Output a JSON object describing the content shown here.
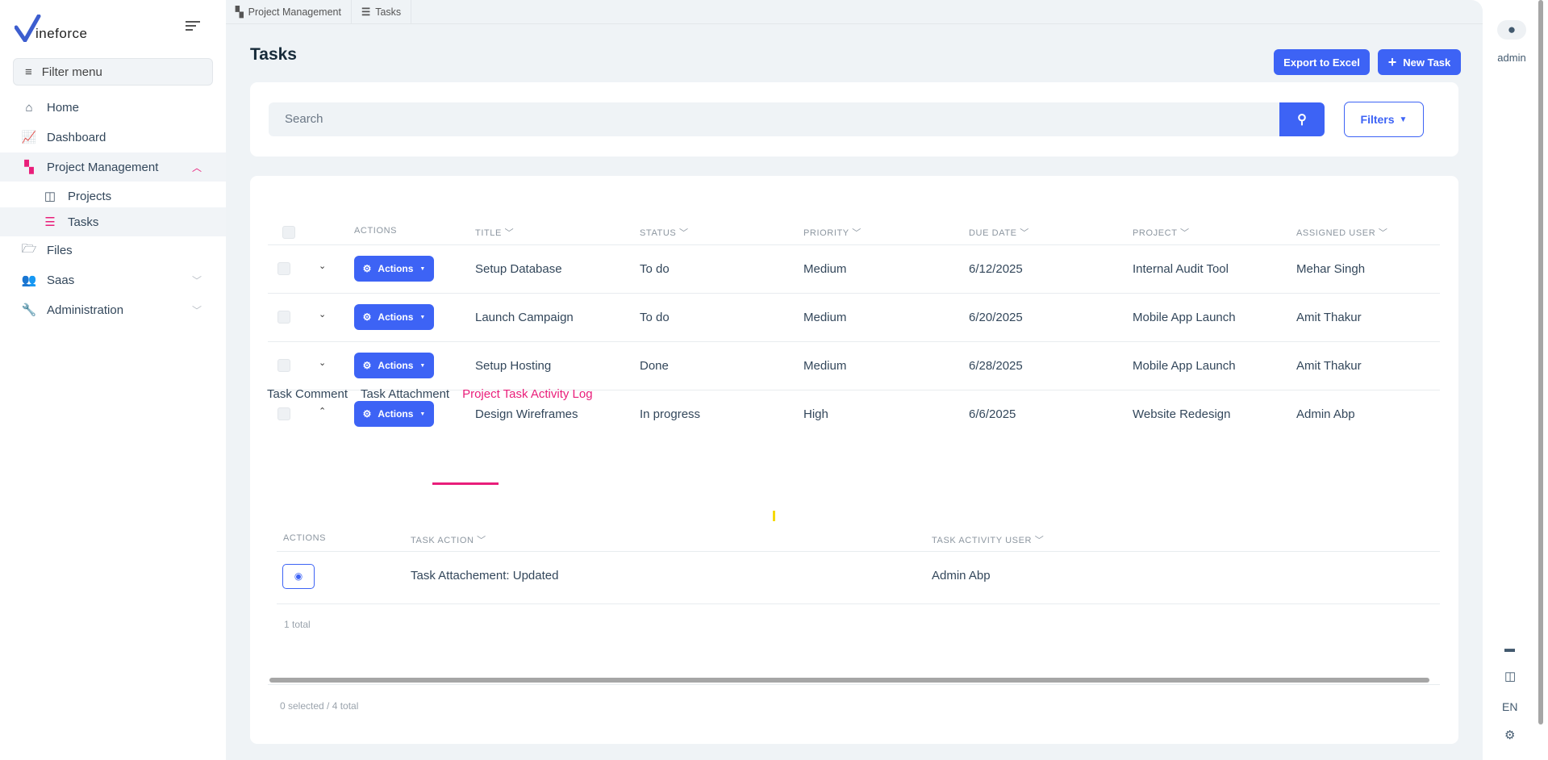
{
  "brand": {
    "logo_text": "ineforce",
    "logo_letter": "V"
  },
  "sidebar": {
    "filter_placeholder": "Filter menu",
    "items": [
      {
        "label": "Home",
        "icon": "home-icon"
      },
      {
        "label": "Dashboard",
        "icon": "chart-icon"
      },
      {
        "label": "Project Management",
        "icon": "sitemap-icon",
        "expanded": true
      },
      {
        "label": "Projects",
        "icon": "columns-icon"
      },
      {
        "label": "Tasks",
        "icon": "tasks-icon",
        "active": true
      },
      {
        "label": "Files",
        "icon": "folder-icon"
      },
      {
        "label": "Saas",
        "icon": "users-icon"
      },
      {
        "label": "Administration",
        "icon": "wrench-icon"
      }
    ]
  },
  "breadcrumb": [
    "Project Management",
    "Tasks"
  ],
  "page": {
    "title": "Tasks",
    "export_label": "Export to Excel",
    "new_label": "New Task"
  },
  "search": {
    "placeholder": "Search",
    "filters_label": "Filters"
  },
  "table": {
    "headers": [
      "ACTIONS",
      "TITLE",
      "STATUS",
      "PRIORITY",
      "DUE DATE",
      "PROJECT",
      "ASSIGNED USER"
    ],
    "action_label": "Actions",
    "rows": [
      [
        "Setup Database",
        "To do",
        "Medium",
        "6/12/2025",
        "Internal Audit Tool",
        "Mehar Singh"
      ],
      [
        "Launch Campaign",
        "To do",
        "Medium",
        "6/20/2025",
        "Mobile App Launch",
        "Amit Thakur"
      ],
      [
        "Setup Hosting",
        "Done",
        "Medium",
        "6/28/2025",
        "Mobile App Launch",
        "Amit Thakur"
      ],
      [
        "Design Wireframes",
        "In progress",
        "High",
        "6/6/2025",
        "Website Redesign",
        "Admin Abp"
      ]
    ],
    "footer": "0 selected / 4 total"
  },
  "detail": {
    "tabs": [
      "Task Comment",
      "Task Attachment",
      "Project Task Activity Log"
    ],
    "active_tab": 2,
    "headers": [
      "ACTIONS",
      "TASK ACTION",
      "TASK ACTIVITY USER"
    ],
    "rows": [
      [
        "Task Attachement: Updated",
        "Admin Abp"
      ]
    ],
    "total": "1 total"
  },
  "rail": {
    "user": "admin",
    "lang": "EN"
  },
  "colors": {
    "primary": "#3d63f5",
    "accent": "#e91e7a"
  }
}
